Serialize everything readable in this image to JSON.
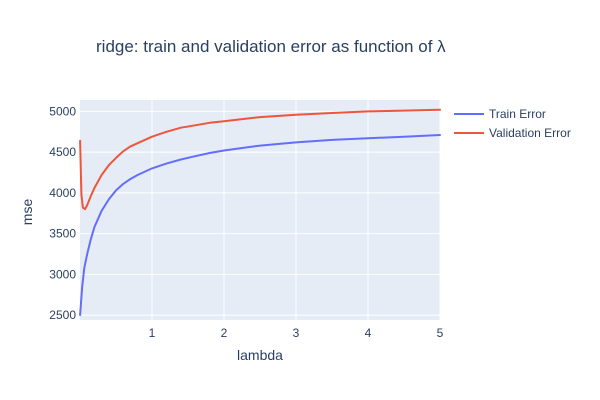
{
  "chart_data": {
    "type": "line",
    "title": "ridge: train and validation error as function of λ",
    "xlabel": "lambda",
    "ylabel": "mse",
    "xlim": [
      0,
      5
    ],
    "ylim": [
      2440,
      5140
    ],
    "xticks": [
      1,
      2,
      3,
      4,
      5
    ],
    "yticks": [
      2500,
      3000,
      3500,
      4000,
      4500,
      5000
    ],
    "grid": true,
    "legend_position": "top-right outside",
    "series": [
      {
        "name": "Train Error",
        "color": "#636efa",
        "x": [
          0.001,
          0.03,
          0.06,
          0.1,
          0.15,
          0.2,
          0.3,
          0.4,
          0.5,
          0.6,
          0.7,
          0.8,
          1.0,
          1.2,
          1.4,
          1.6,
          1.8,
          2.0,
          2.5,
          3.0,
          3.5,
          4.0,
          4.5,
          5.0
        ],
        "y": [
          2500,
          2850,
          3080,
          3250,
          3430,
          3580,
          3780,
          3920,
          4030,
          4110,
          4170,
          4220,
          4300,
          4360,
          4410,
          4450,
          4490,
          4520,
          4580,
          4620,
          4650,
          4670,
          4690,
          4710
        ]
      },
      {
        "name": "Validation Error",
        "color": "#ef553b",
        "x": [
          0.001,
          0.02,
          0.04,
          0.07,
          0.1,
          0.15,
          0.2,
          0.3,
          0.4,
          0.5,
          0.6,
          0.7,
          0.8,
          1.0,
          1.2,
          1.4,
          1.6,
          1.8,
          2.0,
          2.5,
          3.0,
          3.5,
          4.0,
          4.5,
          5.0
        ],
        "y": [
          4640,
          3980,
          3820,
          3800,
          3850,
          3960,
          4060,
          4220,
          4340,
          4430,
          4510,
          4570,
          4610,
          4690,
          4750,
          4800,
          4830,
          4860,
          4880,
          4930,
          4960,
          4980,
          5000,
          5010,
          5020
        ]
      }
    ]
  }
}
